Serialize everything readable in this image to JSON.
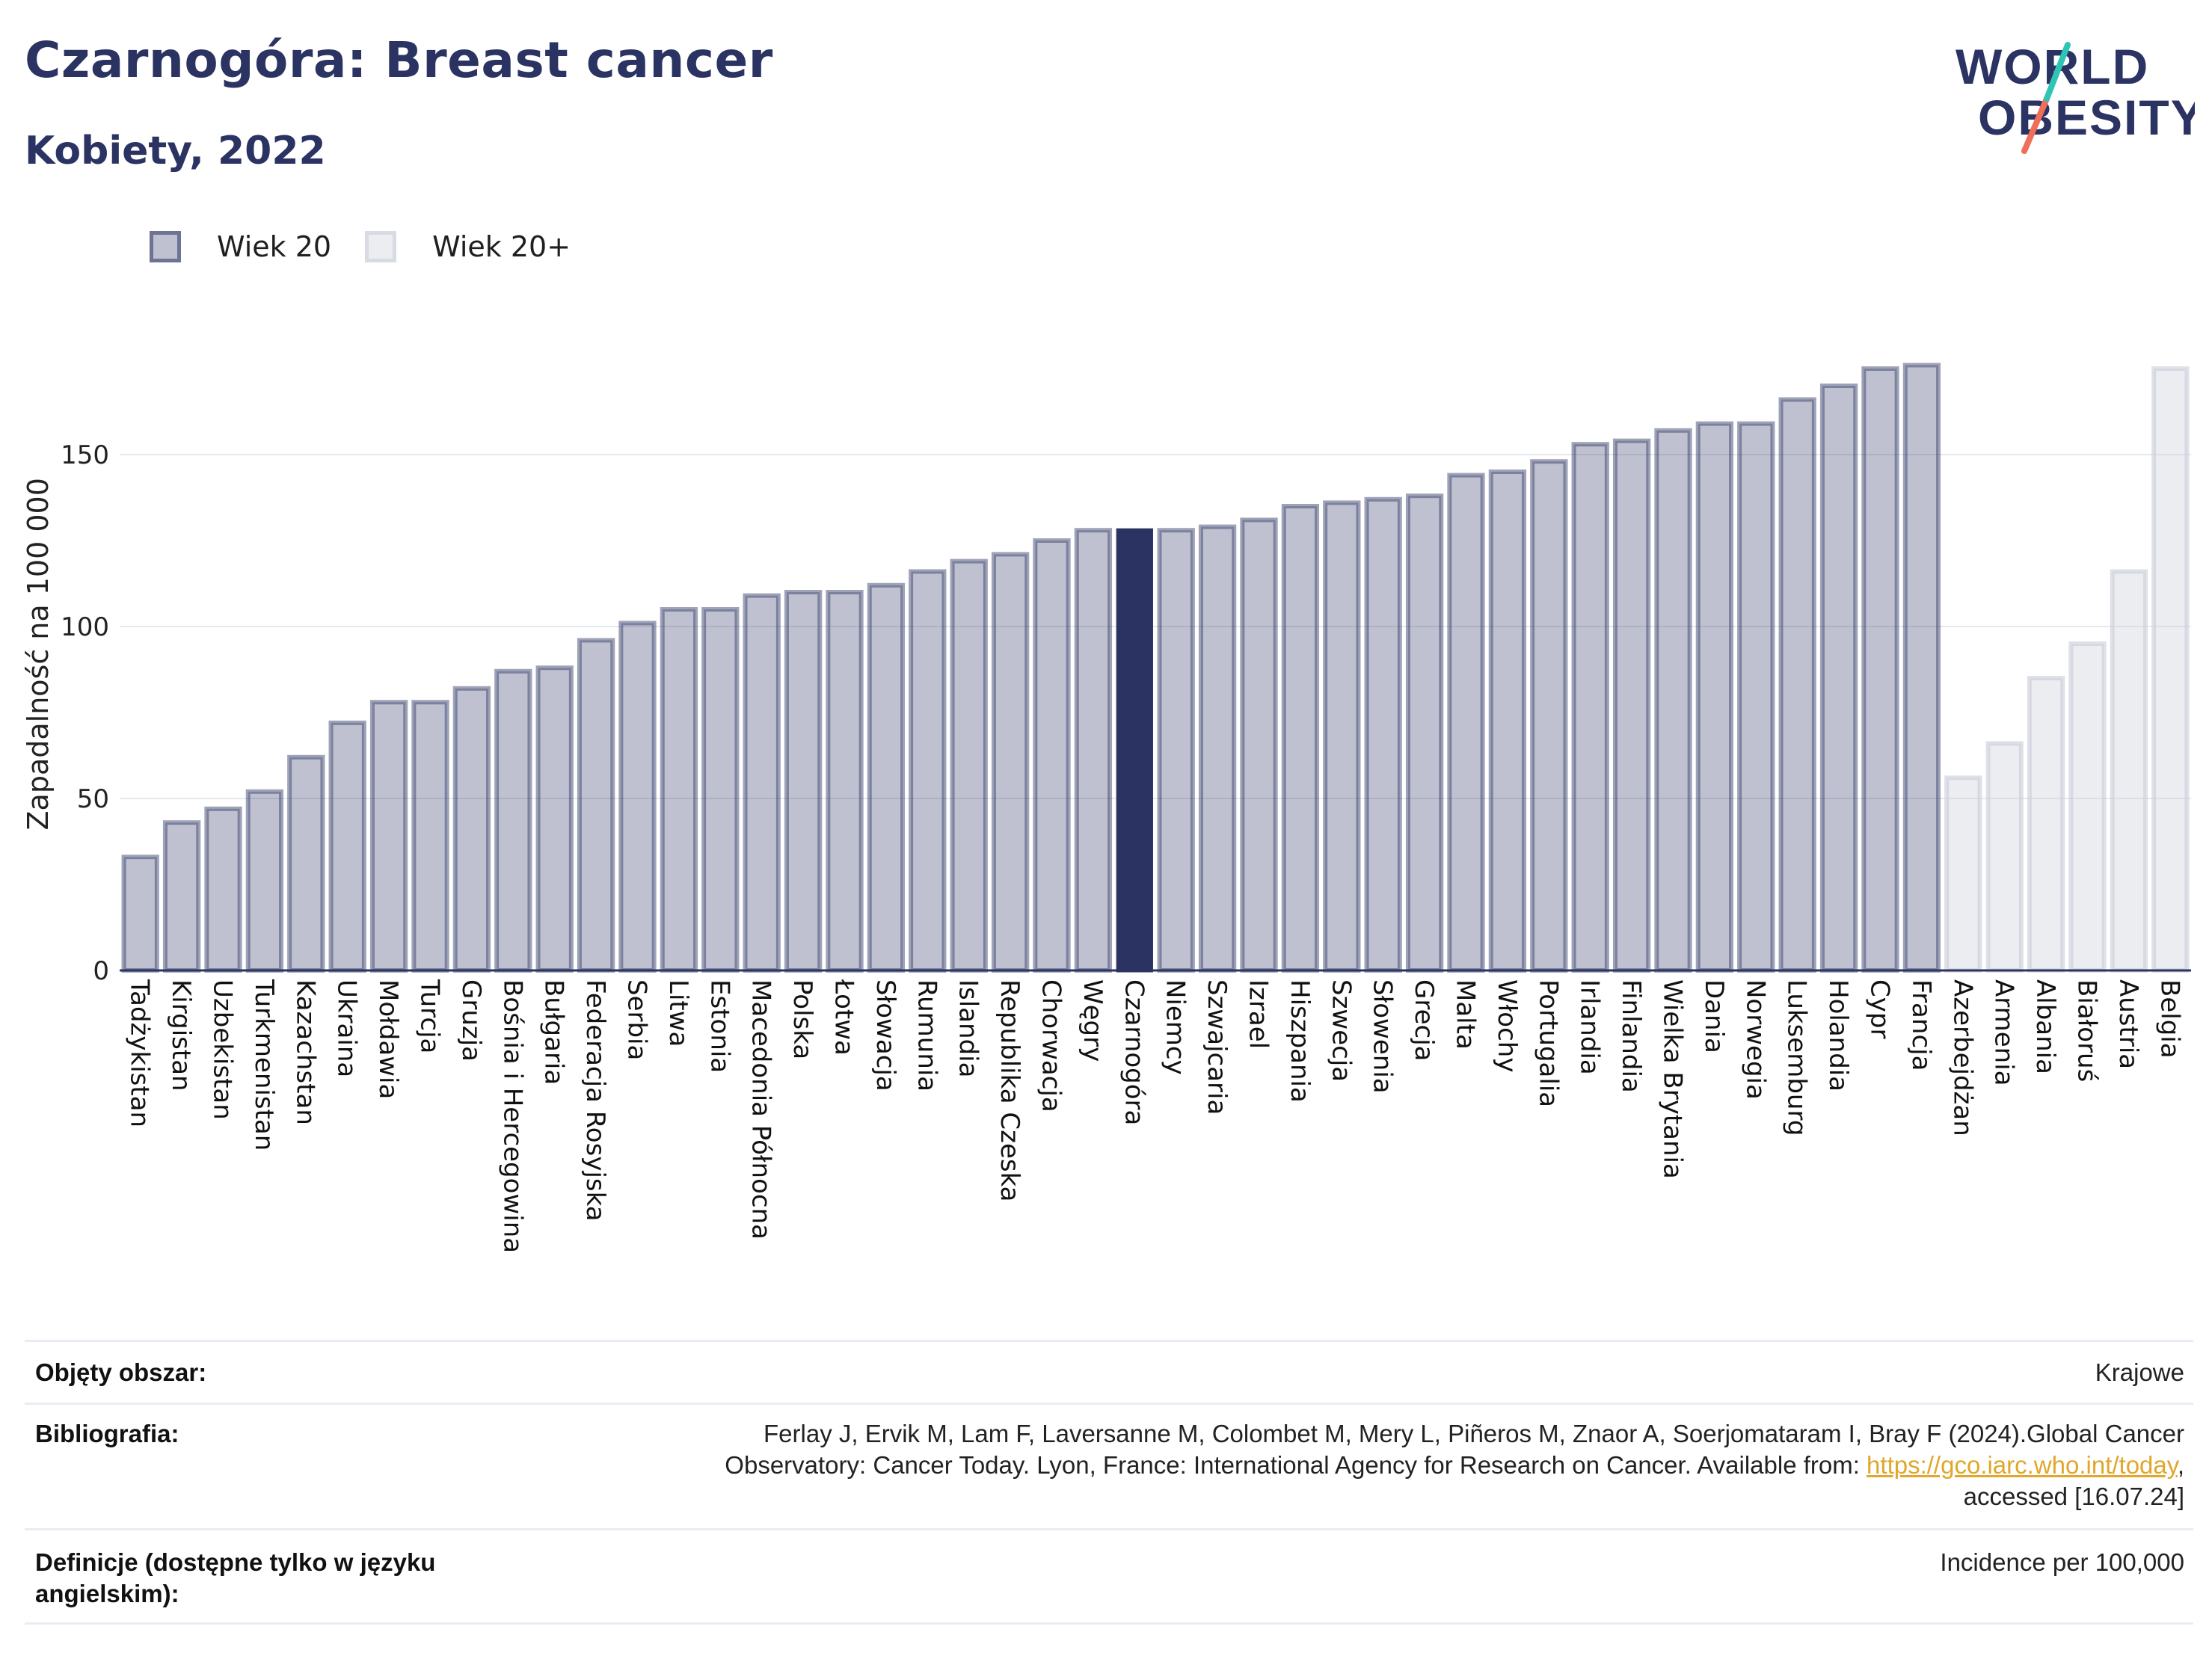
{
  "header": {
    "title": "Czarnogóra: Breast cancer",
    "subtitle": "Kobiety, 2022",
    "logo_line1": "WORLD",
    "logo_line2": "OBESITY"
  },
  "legend": {
    "items": [
      {
        "label": "Wiek 20",
        "color": "#2b3362"
      },
      {
        "label": "Wiek 20+",
        "color": "#c9ccd8"
      }
    ]
  },
  "colors": {
    "primary": "#2b3362",
    "highlight": "#2b3362",
    "accent_teal": "#2ec4b6",
    "accent_coral": "#ef6f5a",
    "link": "#e0a72a"
  },
  "chart_data": {
    "type": "bar",
    "title": "Czarnogóra: Breast cancer",
    "subtitle": "Kobiety, 2022",
    "ylabel": "Zapadalność na 100 000",
    "xlabel": "",
    "ylim": [
      0,
      185
    ],
    "yticks": [
      0,
      50,
      100,
      150
    ],
    "grid": true,
    "legend_position": "top-left",
    "highlight": "Czarnogóra",
    "categories": [
      "Tadżykistan",
      "Kirgistan",
      "Uzbekistan",
      "Turkmenistan",
      "Kazachstan",
      "Ukraina",
      "Mołdawia",
      "Turcja",
      "Gruzja",
      "Bośnia i Hercegowina",
      "Bułgaria",
      "Federacja Rosyjska",
      "Serbia",
      "Litwa",
      "Estonia",
      "Macedonia Północna",
      "Polska",
      "Łotwa",
      "Słowacja",
      "Rumunia",
      "Islandia",
      "Republika Czeska",
      "Chorwacja",
      "Węgry",
      "Czarnogóra",
      "Niemcy",
      "Szwajcaria",
      "Izrael",
      "Hiszpania",
      "Szwecja",
      "Słowenia",
      "Grecja",
      "Malta",
      "Włochy",
      "Portugalia",
      "Irlandia",
      "Finlandia",
      "Wielka Brytania",
      "Dania",
      "Norwegia",
      "Luksemburg",
      "Holandia",
      "Cypr",
      "Francja",
      "Azerbejdżan",
      "Armenia",
      "Albania",
      "Białoruś",
      "Austria",
      "Belgia"
    ],
    "series": [
      {
        "name": "Wiek 20",
        "values": [
          33,
          43,
          47,
          52,
          62,
          72,
          78,
          78,
          82,
          87,
          88,
          96,
          101,
          105,
          105,
          109,
          110,
          110,
          112,
          116,
          119,
          121,
          125,
          128,
          128,
          128,
          129,
          131,
          135,
          136,
          137,
          138,
          144,
          145,
          148,
          153,
          154,
          157,
          159,
          159,
          166,
          170,
          175,
          176,
          null,
          null,
          null,
          null,
          null,
          null
        ]
      },
      {
        "name": "Wiek 20+",
        "values": [
          null,
          null,
          null,
          null,
          null,
          null,
          null,
          null,
          null,
          null,
          null,
          null,
          null,
          null,
          null,
          null,
          null,
          null,
          null,
          null,
          null,
          null,
          null,
          null,
          null,
          null,
          null,
          null,
          null,
          null,
          null,
          null,
          null,
          null,
          null,
          null,
          null,
          null,
          null,
          null,
          null,
          null,
          null,
          null,
          56,
          66,
          85,
          95,
          116,
          175
        ]
      }
    ]
  },
  "info": {
    "rows": [
      {
        "label": "Objęty obszar:",
        "value": "Krajowe"
      },
      {
        "label": "Bibliografia:",
        "value_line1": "Ferlay J, Ervik M, Lam F, Laversanne M, Colombet M, Mery L, Piñeros M, Znaor A, Soerjomataram I, Bray F (2024).Global Cancer",
        "value_line2_pre": "Observatory: Cancer Today. Lyon, France: International Agency for Research on Cancer. Available from: ",
        "value_link": "https://gco.iarc.who.int/today",
        "value_line2_post": ",",
        "value_line3": "accessed [16.07.24]"
      },
      {
        "label": "Definicje (dostępne tylko w języku angielskim):",
        "value": "Incidence per 100,000"
      }
    ]
  }
}
